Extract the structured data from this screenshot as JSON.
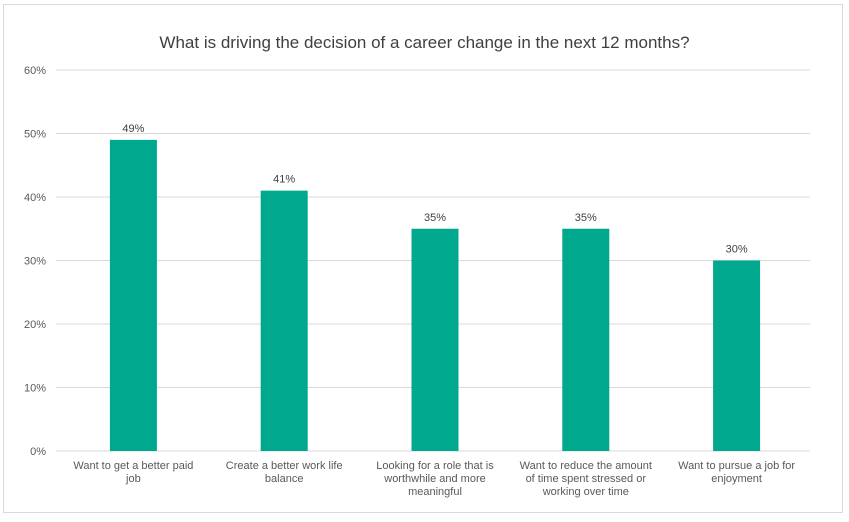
{
  "chart_data": {
    "type": "bar",
    "title": "What is driving the decision of a career change in the next 12 months?",
    "categories": [
      "Want to get a better paid job",
      "Create a better work life balance",
      "Looking for a role that is worthwhile and more meaningful",
      "Want to reduce the amount of time spent stressed or working over time",
      "Want to pursue a job for enjoyment"
    ],
    "category_lines": [
      [
        "Want to get a better paid",
        "job"
      ],
      [
        "Create a better work life",
        "balance"
      ],
      [
        "Looking for a role that is",
        "worthwhile and more",
        "meaningful"
      ],
      [
        "Want to reduce the amount",
        "of time spent stressed or",
        "working over time"
      ],
      [
        "Want to pursue a job for",
        "enjoyment"
      ]
    ],
    "values": [
      49,
      41,
      35,
      35,
      30
    ],
    "data_labels": [
      "49%",
      "41%",
      "35%",
      "35%",
      "30%"
    ],
    "y_ticks": [
      "0%",
      "10%",
      "20%",
      "30%",
      "40%",
      "50%",
      "60%"
    ],
    "ylim": [
      0,
      60
    ],
    "grid": true,
    "bar_color": "#00a88e",
    "grid_color": "#d9d9d9"
  }
}
